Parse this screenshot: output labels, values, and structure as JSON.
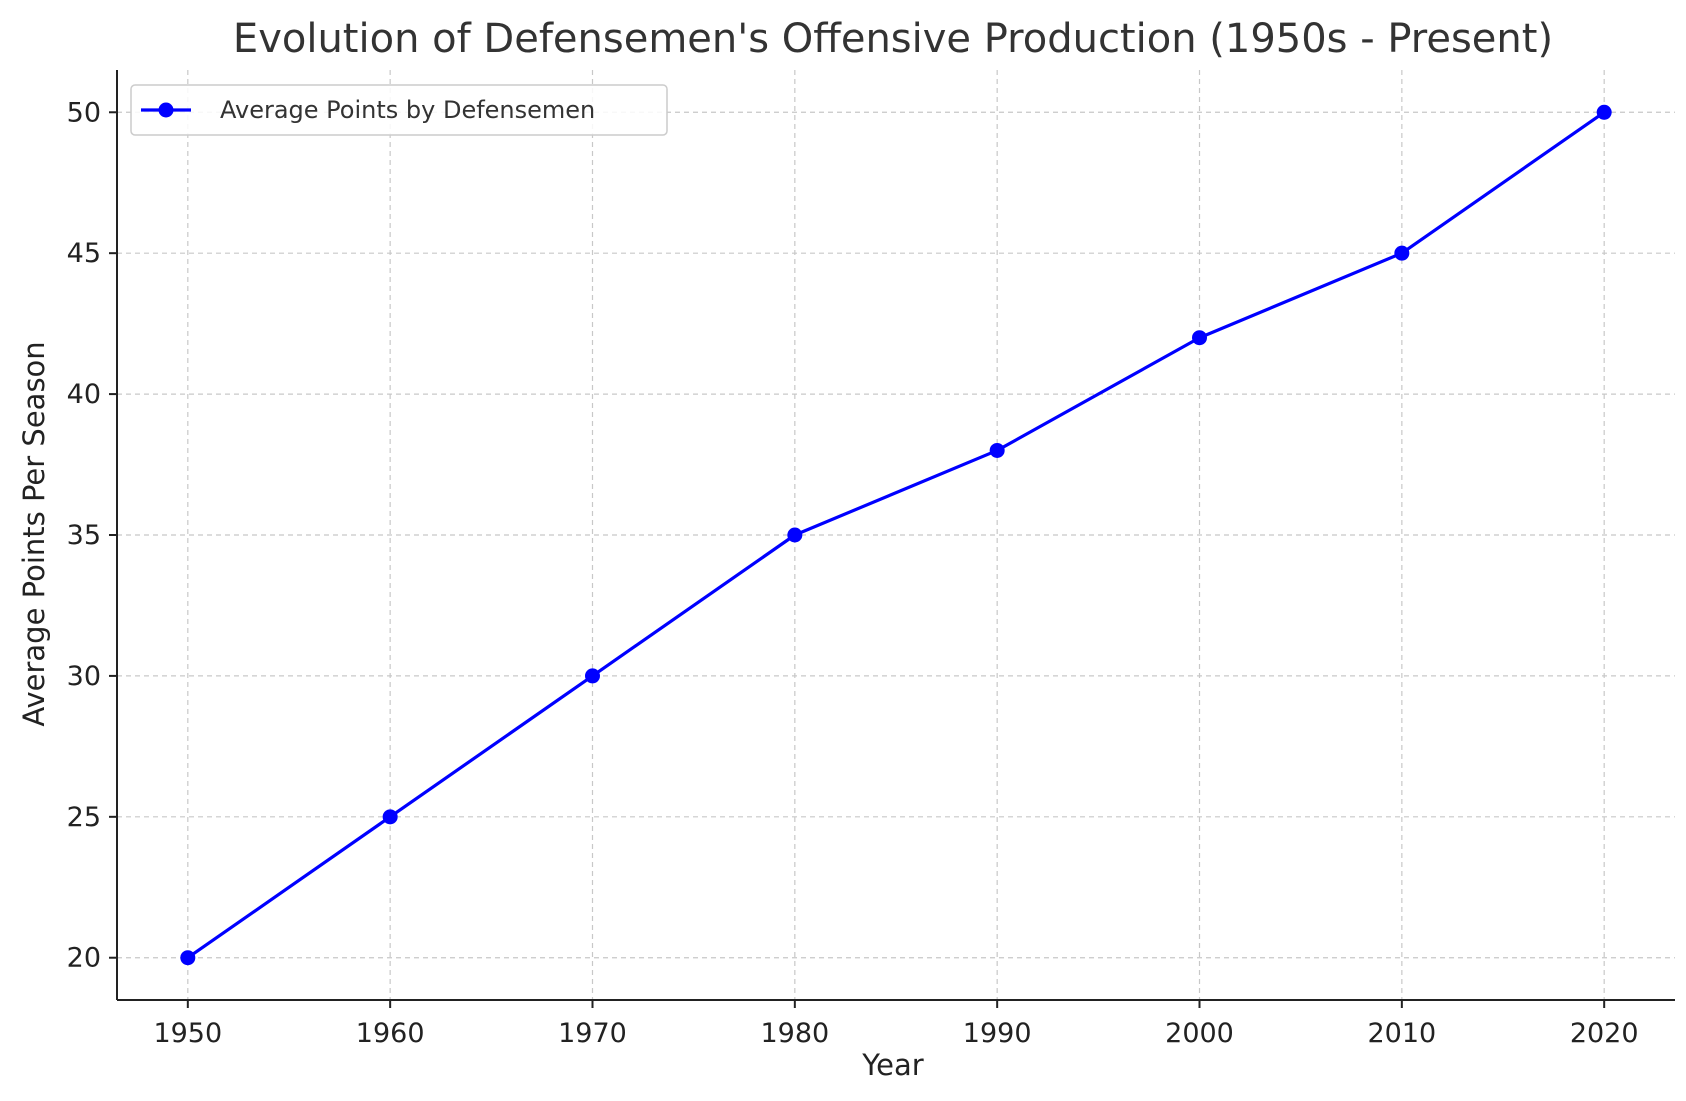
{
  "chart_data": {
    "type": "line",
    "title": "Evolution of Defensemen's Offensive Production (1950s - Present)",
    "xlabel": "Year",
    "ylabel": "Average Points Per Season",
    "x": [
      1950,
      1960,
      1970,
      1980,
      1990,
      2000,
      2010,
      2020
    ],
    "series": [
      {
        "name": "Average Points by Defensemen",
        "values": [
          20,
          25,
          30,
          35,
          38,
          42,
          45,
          50
        ],
        "color": "#0000ff",
        "marker": "circle"
      }
    ],
    "xlim": [
      1946.5,
      2023.5
    ],
    "ylim": [
      18.5,
      51.5
    ],
    "xticks": [
      1950,
      1960,
      1970,
      1980,
      1990,
      2000,
      2010,
      2020
    ],
    "yticks": [
      20,
      25,
      30,
      35,
      40,
      45,
      50
    ],
    "grid": true,
    "grid_style": "dashed",
    "legend_position": "top-left"
  }
}
